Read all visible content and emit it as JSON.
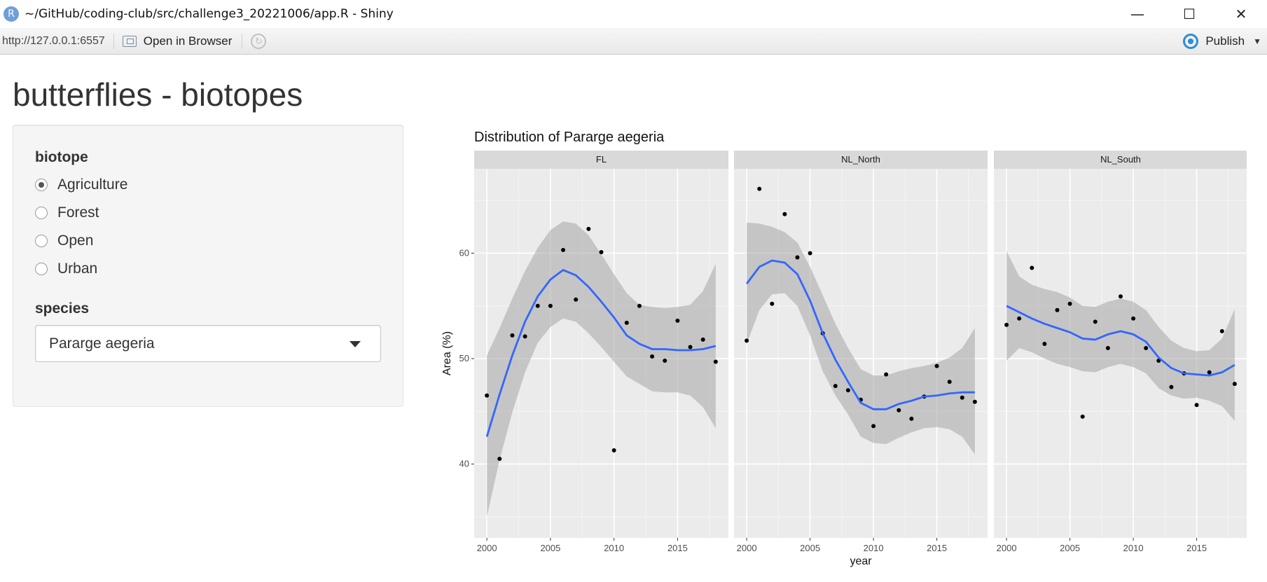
{
  "window": {
    "title": "~/GitHub/coding-club/src/challenge3_20221006/app.R - Shiny",
    "app_icon_letter": "R",
    "controls": {
      "minimize": "—",
      "maximize": "☐",
      "close": "✕"
    }
  },
  "toolbar": {
    "url": "http://127.0.0.1:6557",
    "open_in_browser": "Open in Browser",
    "publish": "Publish"
  },
  "page": {
    "title": "butterflies - biotopes"
  },
  "sidebar": {
    "biotope_label": "biotope",
    "biotopes": [
      {
        "label": "Agriculture",
        "checked": true
      },
      {
        "label": "Forest",
        "checked": false
      },
      {
        "label": "Open",
        "checked": false
      },
      {
        "label": "Urban",
        "checked": false
      }
    ],
    "species_label": "species",
    "species_selected": "Pararge aegeria"
  },
  "chart_data": {
    "type": "scatter",
    "title": "Distribution of  Pararge aegeria",
    "xlabel": "year",
    "ylabel": "Area (%)",
    "xlim": [
      1999,
      2019
    ],
    "ylim": [
      33,
      68
    ],
    "xticks": [
      2000,
      2005,
      2010,
      2015
    ],
    "yticks": [
      40,
      50,
      60
    ],
    "grid": true,
    "colors": {
      "smooth": "#3366FF",
      "band": "#a6a6a6",
      "panel": "#ebebeb",
      "strip": "#d9d9d9",
      "point": "#000000"
    },
    "facets": [
      {
        "name": "FL",
        "points": [
          [
            2000,
            46.5
          ],
          [
            2001,
            40.5
          ],
          [
            2002,
            52.2
          ],
          [
            2003,
            52.1
          ],
          [
            2004,
            55.0
          ],
          [
            2005,
            55.0
          ],
          [
            2006,
            60.3
          ],
          [
            2007,
            55.6
          ],
          [
            2008,
            62.3
          ],
          [
            2009,
            60.1
          ],
          [
            2010,
            41.3
          ],
          [
            2011,
            53.4
          ],
          [
            2012,
            55.0
          ],
          [
            2013,
            50.2
          ],
          [
            2014,
            49.8
          ],
          [
            2015,
            53.6
          ],
          [
            2016,
            51.1
          ],
          [
            2017,
            51.8
          ],
          [
            2018,
            49.7
          ]
        ],
        "smooth": [
          [
            2000,
            42.6
          ],
          [
            2001,
            46.6
          ],
          [
            2002,
            50.3
          ],
          [
            2003,
            53.5
          ],
          [
            2004,
            55.9
          ],
          [
            2005,
            57.5
          ],
          [
            2006,
            58.4
          ],
          [
            2007,
            57.9
          ],
          [
            2008,
            56.8
          ],
          [
            2009,
            55.4
          ],
          [
            2010,
            53.9
          ],
          [
            2011,
            52.2
          ],
          [
            2012,
            51.4
          ],
          [
            2013,
            50.9
          ],
          [
            2014,
            50.9
          ],
          [
            2015,
            50.8
          ],
          [
            2016,
            50.8
          ],
          [
            2017,
            50.9
          ],
          [
            2018,
            51.2
          ]
        ],
        "band_upper": [
          [
            2000,
            50.3
          ],
          [
            2001,
            52.9
          ],
          [
            2002,
            55.7
          ],
          [
            2003,
            58.3
          ],
          [
            2004,
            60.5
          ],
          [
            2005,
            62.2
          ],
          [
            2006,
            63.0
          ],
          [
            2007,
            62.8
          ],
          [
            2008,
            61.7
          ],
          [
            2009,
            59.9
          ],
          [
            2010,
            58.0
          ],
          [
            2011,
            56.2
          ],
          [
            2012,
            55.1
          ],
          [
            2013,
            54.9
          ],
          [
            2014,
            54.8
          ],
          [
            2015,
            54.9
          ],
          [
            2016,
            55.1
          ],
          [
            2017,
            56.4
          ],
          [
            2018,
            59.0
          ]
        ],
        "band_lower": [
          [
            2000,
            35.0
          ],
          [
            2001,
            40.4
          ],
          [
            2002,
            44.9
          ],
          [
            2003,
            48.7
          ],
          [
            2004,
            51.5
          ],
          [
            2005,
            53.0
          ],
          [
            2006,
            53.8
          ],
          [
            2007,
            53.5
          ],
          [
            2008,
            52.4
          ],
          [
            2009,
            51.1
          ],
          [
            2010,
            49.7
          ],
          [
            2011,
            48.3
          ],
          [
            2012,
            47.6
          ],
          [
            2013,
            46.9
          ],
          [
            2014,
            46.8
          ],
          [
            2015,
            46.8
          ],
          [
            2016,
            46.5
          ],
          [
            2017,
            45.4
          ],
          [
            2018,
            43.4
          ]
        ]
      },
      {
        "name": "NL_North",
        "points": [
          [
            2000,
            51.7
          ],
          [
            2001,
            66.1
          ],
          [
            2002,
            55.2
          ],
          [
            2003,
            63.7
          ],
          [
            2004,
            59.6
          ],
          [
            2005,
            60.0
          ],
          [
            2006,
            52.4
          ],
          [
            2007,
            47.4
          ],
          [
            2008,
            47.0
          ],
          [
            2009,
            46.1
          ],
          [
            2010,
            43.6
          ],
          [
            2011,
            48.5
          ],
          [
            2012,
            45.1
          ],
          [
            2013,
            44.3
          ],
          [
            2014,
            46.4
          ],
          [
            2015,
            49.3
          ],
          [
            2016,
            47.8
          ],
          [
            2017,
            46.3
          ],
          [
            2018,
            45.9
          ]
        ],
        "smooth": [
          [
            2000,
            57.1
          ],
          [
            2001,
            58.7
          ],
          [
            2002,
            59.3
          ],
          [
            2003,
            59.1
          ],
          [
            2004,
            58.0
          ],
          [
            2005,
            55.5
          ],
          [
            2006,
            52.4
          ],
          [
            2007,
            49.9
          ],
          [
            2008,
            47.8
          ],
          [
            2009,
            45.8
          ],
          [
            2010,
            45.2
          ],
          [
            2011,
            45.2
          ],
          [
            2012,
            45.7
          ],
          [
            2013,
            46.0
          ],
          [
            2014,
            46.4
          ],
          [
            2015,
            46.5
          ],
          [
            2016,
            46.7
          ],
          [
            2017,
            46.8
          ],
          [
            2018,
            46.8
          ]
        ],
        "band_upper": [
          [
            2000,
            62.9
          ],
          [
            2001,
            62.8
          ],
          [
            2002,
            62.5
          ],
          [
            2003,
            62.0
          ],
          [
            2004,
            61.0
          ],
          [
            2005,
            58.7
          ],
          [
            2006,
            56.0
          ],
          [
            2007,
            53.3
          ],
          [
            2008,
            51.0
          ],
          [
            2009,
            49.0
          ],
          [
            2010,
            48.4
          ],
          [
            2011,
            48.4
          ],
          [
            2012,
            48.8
          ],
          [
            2013,
            49.1
          ],
          [
            2014,
            49.3
          ],
          [
            2015,
            49.6
          ],
          [
            2016,
            50.1
          ],
          [
            2017,
            51.0
          ],
          [
            2018,
            52.9
          ]
        ],
        "band_lower": [
          [
            2000,
            51.4
          ],
          [
            2001,
            54.6
          ],
          [
            2002,
            56.1
          ],
          [
            2003,
            56.2
          ],
          [
            2004,
            55.0
          ],
          [
            2005,
            52.2
          ],
          [
            2006,
            48.8
          ],
          [
            2007,
            46.5
          ],
          [
            2008,
            44.7
          ],
          [
            2009,
            42.6
          ],
          [
            2010,
            42.0
          ],
          [
            2011,
            41.9
          ],
          [
            2012,
            42.5
          ],
          [
            2013,
            43.0
          ],
          [
            2014,
            43.4
          ],
          [
            2015,
            43.5
          ],
          [
            2016,
            43.3
          ],
          [
            2017,
            42.6
          ],
          [
            2018,
            40.9
          ]
        ]
      },
      {
        "name": "NL_South",
        "points": [
          [
            2000,
            53.2
          ],
          [
            2001,
            53.8
          ],
          [
            2002,
            58.6
          ],
          [
            2003,
            51.4
          ],
          [
            2004,
            54.6
          ],
          [
            2005,
            55.2
          ],
          [
            2006,
            44.5
          ],
          [
            2007,
            53.5
          ],
          [
            2008,
            51.0
          ],
          [
            2009,
            55.9
          ],
          [
            2010,
            53.8
          ],
          [
            2011,
            51.0
          ],
          [
            2012,
            49.8
          ],
          [
            2013,
            47.3
          ],
          [
            2014,
            48.6
          ],
          [
            2015,
            45.6
          ],
          [
            2016,
            48.7
          ],
          [
            2017,
            52.6
          ],
          [
            2018,
            47.6
          ]
        ],
        "smooth": [
          [
            2000,
            55.0
          ],
          [
            2001,
            54.4
          ],
          [
            2002,
            53.8
          ],
          [
            2003,
            53.3
          ],
          [
            2004,
            52.9
          ],
          [
            2005,
            52.5
          ],
          [
            2006,
            51.9
          ],
          [
            2007,
            51.8
          ],
          [
            2008,
            52.3
          ],
          [
            2009,
            52.6
          ],
          [
            2010,
            52.3
          ],
          [
            2011,
            51.6
          ],
          [
            2012,
            50.1
          ],
          [
            2013,
            49.1
          ],
          [
            2014,
            48.6
          ],
          [
            2015,
            48.5
          ],
          [
            2016,
            48.4
          ],
          [
            2017,
            48.7
          ],
          [
            2018,
            49.4
          ]
        ],
        "band_upper": [
          [
            2000,
            60.2
          ],
          [
            2001,
            57.8
          ],
          [
            2002,
            57.0
          ],
          [
            2003,
            56.6
          ],
          [
            2004,
            56.3
          ],
          [
            2005,
            55.8
          ],
          [
            2006,
            55.0
          ],
          [
            2007,
            54.9
          ],
          [
            2008,
            55.4
          ],
          [
            2009,
            55.7
          ],
          [
            2010,
            55.4
          ],
          [
            2011,
            54.6
          ],
          [
            2012,
            53.0
          ],
          [
            2013,
            51.7
          ],
          [
            2014,
            51.0
          ],
          [
            2015,
            50.7
          ],
          [
            2016,
            50.8
          ],
          [
            2017,
            51.9
          ],
          [
            2018,
            54.7
          ]
        ],
        "band_lower": [
          [
            2000,
            49.8
          ],
          [
            2001,
            51.0
          ],
          [
            2002,
            50.6
          ],
          [
            2003,
            50.0
          ],
          [
            2004,
            49.5
          ],
          [
            2005,
            49.2
          ],
          [
            2006,
            48.8
          ],
          [
            2007,
            48.7
          ],
          [
            2008,
            49.2
          ],
          [
            2009,
            49.5
          ],
          [
            2010,
            49.2
          ],
          [
            2011,
            48.6
          ],
          [
            2012,
            47.2
          ],
          [
            2013,
            46.5
          ],
          [
            2014,
            46.2
          ],
          [
            2015,
            46.3
          ],
          [
            2016,
            46.0
          ],
          [
            2017,
            45.5
          ],
          [
            2018,
            44.1
          ]
        ]
      }
    ]
  }
}
